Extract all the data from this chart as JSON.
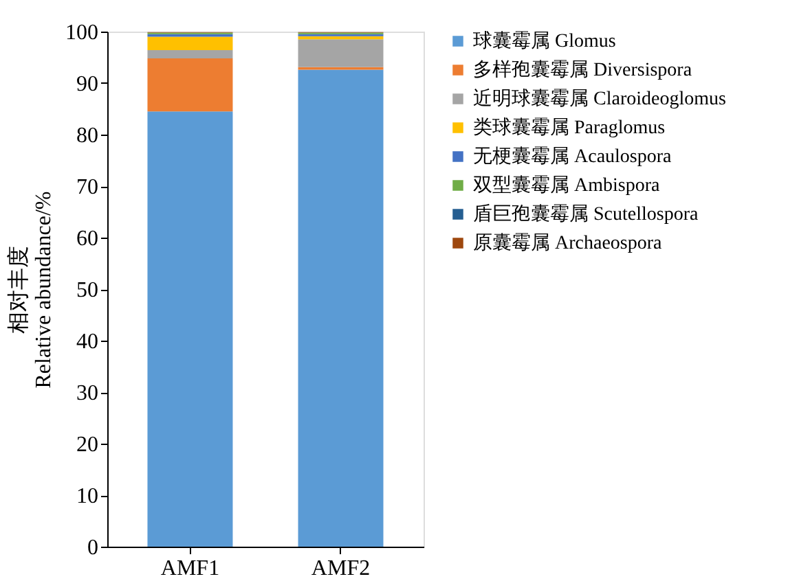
{
  "chart_data": {
    "type": "bar",
    "stacked": true,
    "ylabel": "相对丰度\nRelative abundance/%",
    "categories": [
      "AMF1",
      "AMF2"
    ],
    "ylim": [
      0,
      100
    ],
    "yticks": [
      0,
      10,
      20,
      30,
      40,
      50,
      60,
      70,
      80,
      90,
      100
    ],
    "grid": false,
    "legend": "right",
    "series": [
      {
        "name": "球囊霉属 Glomus",
        "color": "#5b9bd5",
        "values": [
          84.5,
          92.6
        ]
      },
      {
        "name": "多样孢囊霉属 Diversispora",
        "color": "#ed7d31",
        "values": [
          10.3,
          0.5
        ]
      },
      {
        "name": "近明球囊霉属 Claroideoglomus",
        "color": "#a5a5a5",
        "values": [
          1.6,
          5.4
        ]
      },
      {
        "name": "类球囊霉属 Paraglomus",
        "color": "#ffc000",
        "values": [
          2.6,
          0.6
        ]
      },
      {
        "name": "无梗囊霉属 Acaulospora",
        "color": "#4472c4",
        "values": [
          0.5,
          0.4
        ]
      },
      {
        "name": "双型囊霉属 Ambispora",
        "color": "#70ad47",
        "values": [
          0.3,
          0.3
        ]
      },
      {
        "name": "盾巨孢囊霉属 Scutellospora",
        "color": "#255e91",
        "values": [
          null,
          null
        ]
      },
      {
        "name": "原囊霉属 Archaeospora",
        "color": "#9e480e",
        "values": [
          0.1,
          0.1
        ]
      }
    ]
  }
}
